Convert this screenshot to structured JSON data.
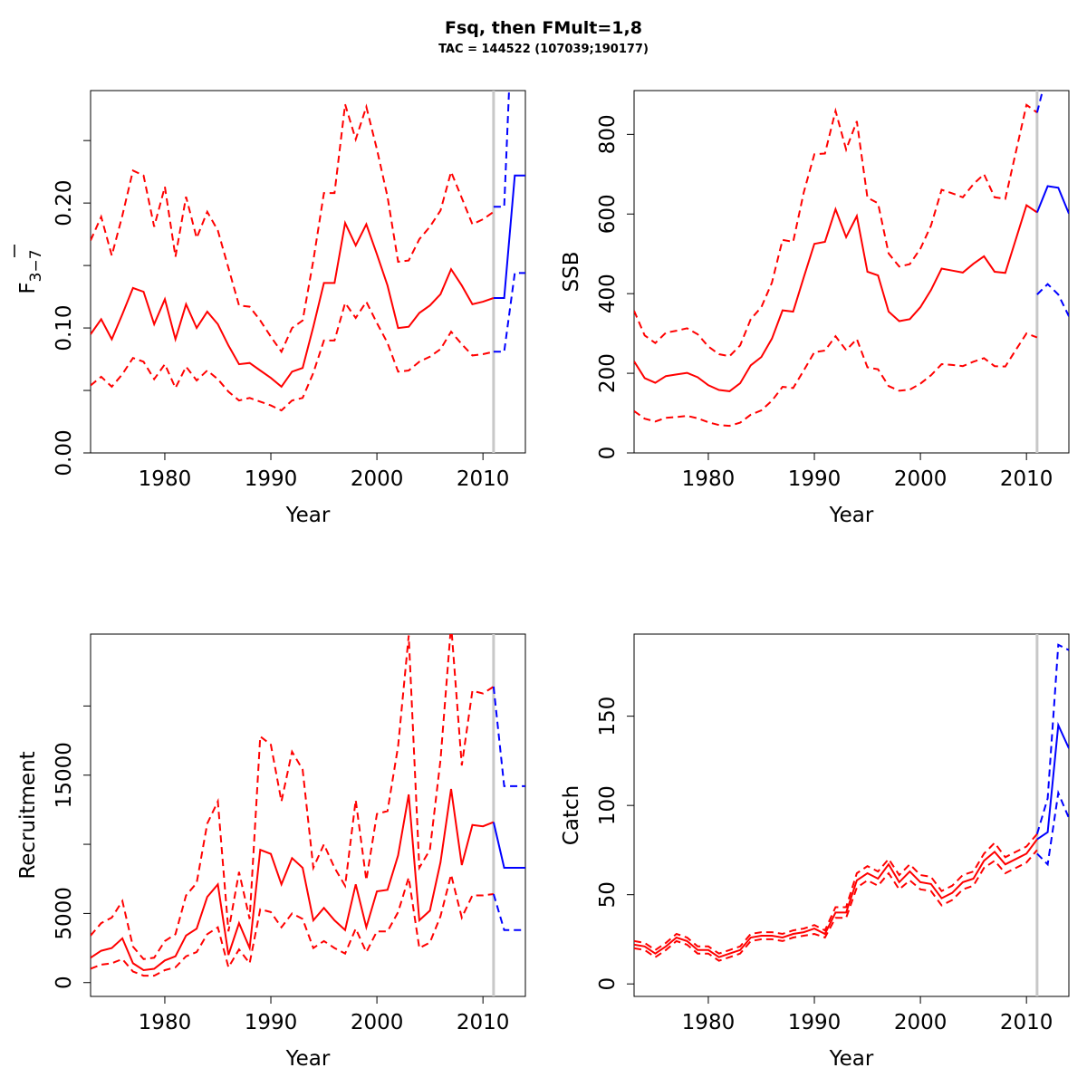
{
  "title": "Fsq, then FMult=1,8",
  "subtitle": "TAC = 144522 (107039;190177)",
  "colors": {
    "historic": "#ff0000",
    "forecast": "#0000ff",
    "marker": "#c8c8c8"
  },
  "chart_data": [
    {
      "type": "line",
      "xlabel": "Year",
      "ylabel": "F",
      "ylabel_sub": "3−7",
      "xlim": [
        1973,
        2014
      ],
      "ylim": [
        0,
        0.29
      ],
      "xticks": [
        1980,
        1990,
        2000,
        2010
      ],
      "yticks": [
        0.0,
        0.05,
        0.1,
        0.15,
        0.2,
        0.25
      ],
      "ytick_labels": [
        "0.00",
        "",
        "0.10",
        "",
        "0.20",
        ""
      ],
      "marker_year": 2011,
      "historic": {
        "x": [
          1973,
          1974,
          1975,
          1976,
          1977,
          1978,
          1979,
          1980,
          1981,
          1982,
          1983,
          1984,
          1985,
          1986,
          1987,
          1988,
          1989,
          1990,
          1991,
          1992,
          1993,
          1994,
          1995,
          1996,
          1997,
          1998,
          1999,
          2000,
          2001,
          2002,
          2003,
          2004,
          2005,
          2006,
          2007,
          2008,
          2009,
          2010,
          2011
        ],
        "mid": [
          0.095,
          0.107,
          0.091,
          0.111,
          0.132,
          0.129,
          0.103,
          0.123,
          0.091,
          0.119,
          0.1,
          0.113,
          0.103,
          0.086,
          0.071,
          0.072,
          0.066,
          0.06,
          0.053,
          0.065,
          0.068,
          0.101,
          0.136,
          0.136,
          0.184,
          0.166,
          0.183,
          0.159,
          0.134,
          0.1,
          0.101,
          0.112,
          0.118,
          0.127,
          0.147,
          0.134,
          0.119,
          0.121,
          0.124
        ],
        "low": [
          0.054,
          0.061,
          0.053,
          0.063,
          0.076,
          0.073,
          0.059,
          0.071,
          0.052,
          0.069,
          0.058,
          0.066,
          0.059,
          0.049,
          0.042,
          0.044,
          0.041,
          0.038,
          0.034,
          0.042,
          0.044,
          0.064,
          0.09,
          0.09,
          0.12,
          0.108,
          0.121,
          0.104,
          0.088,
          0.065,
          0.066,
          0.073,
          0.077,
          0.083,
          0.097,
          0.087,
          0.078,
          0.079,
          0.081
        ],
        "high": [
          0.17,
          0.189,
          0.158,
          0.19,
          0.226,
          0.222,
          0.181,
          0.213,
          0.157,
          0.205,
          0.172,
          0.193,
          0.178,
          0.148,
          0.118,
          0.117,
          0.106,
          0.093,
          0.081,
          0.1,
          0.106,
          0.154,
          0.208,
          0.208,
          0.279,
          0.251,
          0.277,
          0.243,
          0.205,
          0.153,
          0.154,
          0.171,
          0.181,
          0.194,
          0.225,
          0.204,
          0.183,
          0.187,
          0.193
        ]
      },
      "forecast": {
        "x": [
          2011,
          2012,
          2013,
          2014
        ],
        "mid": [
          0.124,
          0.124,
          0.222,
          0.222
        ],
        "low": [
          0.081,
          0.081,
          0.144,
          0.144
        ],
        "high": [
          0.197,
          0.197,
          0.4,
          0.4
        ]
      }
    },
    {
      "type": "line",
      "xlabel": "Year",
      "ylabel": "SSB",
      "xlim": [
        1973,
        2014
      ],
      "ylim": [
        0,
        910
      ],
      "xticks": [
        1980,
        1990,
        2000,
        2010
      ],
      "yticks": [
        0,
        200,
        400,
        600,
        800
      ],
      "ytick_labels": [
        "0",
        "200",
        "400",
        "600",
        "800"
      ],
      "marker_year": 2011,
      "historic": {
        "x": [
          1973,
          1974,
          1975,
          1976,
          1977,
          1978,
          1979,
          1980,
          1981,
          1982,
          1983,
          1984,
          1985,
          1986,
          1987,
          1988,
          1989,
          1990,
          1991,
          1992,
          1993,
          1994,
          1995,
          1996,
          1997,
          1998,
          1999,
          2000,
          2001,
          2002,
          2003,
          2004,
          2005,
          2006,
          2007,
          2008,
          2009,
          2010,
          2011
        ],
        "mid": [
          230,
          188,
          176,
          193,
          197,
          201,
          190,
          170,
          158,
          155,
          175,
          220,
          241,
          287,
          358,
          355,
          441,
          525,
          530,
          612,
          542,
          595,
          455,
          446,
          355,
          331,
          336,
          366,
          409,
          463,
          458,
          453,
          475,
          494,
          455,
          452,
          537,
          622,
          604
        ],
        "low": [
          105,
          86,
          79,
          88,
          90,
          93,
          87,
          77,
          70,
          68,
          76,
          96,
          107,
          131,
          166,
          163,
          207,
          253,
          257,
          293,
          258,
          286,
          215,
          210,
          168,
          156,
          159,
          174,
          195,
          223,
          221,
          218,
          229,
          238,
          218,
          217,
          259,
          300,
          290
        ],
        "high": [
          357,
          295,
          276,
          302,
          307,
          313,
          298,
          267,
          248,
          243,
          270,
          336,
          366,
          428,
          535,
          530,
          654,
          750,
          752,
          859,
          762,
          833,
          641,
          627,
          501,
          468,
          474,
          513,
          571,
          661,
          652,
          642,
          675,
          700,
          642,
          638,
          756,
          874,
          855
        ]
      },
      "forecast": {
        "x": [
          2011,
          2012,
          2013,
          2014
        ],
        "mid": [
          604,
          670,
          666,
          601
        ],
        "low": [
          398,
          424,
          398,
          343
        ],
        "high": [
          855,
          960,
          960,
          960
        ]
      }
    },
    {
      "type": "line",
      "xlabel": "Year",
      "ylabel": "Recruitment",
      "xlim": [
        1973,
        2014
      ],
      "ylim": [
        -1000,
        25200
      ],
      "xticks": [
        1980,
        1990,
        2000,
        2010
      ],
      "yticks": [
        0,
        5000,
        10000,
        15000,
        20000
      ],
      "ytick_labels": [
        "0",
        "5000",
        "",
        "15000",
        ""
      ],
      "marker_year": 2011,
      "historic": {
        "x": [
          1973,
          1974,
          1975,
          1976,
          1977,
          1978,
          1979,
          1980,
          1981,
          1982,
          1983,
          1984,
          1985,
          1986,
          1987,
          1988,
          1989,
          1990,
          1991,
          1992,
          1993,
          1994,
          1995,
          1996,
          1997,
          1998,
          1999,
          2000,
          2001,
          2002,
          2003,
          2004,
          2005,
          2006,
          2007,
          2008,
          2009,
          2010,
          2011
        ],
        "mid": [
          1800,
          2300,
          2500,
          3200,
          1400,
          900,
          1000,
          1600,
          1900,
          3400,
          3900,
          6200,
          7100,
          2000,
          4300,
          2500,
          9600,
          9300,
          7100,
          9000,
          8300,
          4500,
          5400,
          4500,
          3800,
          7100,
          4000,
          6600,
          6700,
          9200,
          13600,
          4500,
          5200,
          8700,
          14000,
          8500,
          11400,
          11300,
          11600
        ],
        "low": [
          1000,
          1300,
          1400,
          1700,
          800,
          500,
          500,
          900,
          1100,
          1900,
          2200,
          3500,
          4000,
          1100,
          2400,
          1400,
          5300,
          5100,
          4000,
          5000,
          4600,
          2500,
          3000,
          2500,
          2100,
          3900,
          2200,
          3700,
          3700,
          5100,
          7600,
          2500,
          2900,
          4800,
          7800,
          4700,
          6300,
          6300,
          6400
        ],
        "high": [
          3400,
          4300,
          4700,
          5900,
          2600,
          1700,
          1800,
          3000,
          3500,
          6300,
          7200,
          11500,
          13100,
          3700,
          8000,
          4600,
          17800,
          17200,
          13100,
          16700,
          15400,
          8300,
          10000,
          8300,
          7000,
          13200,
          7400,
          12200,
          12400,
          17100,
          25100,
          8300,
          9600,
          16100,
          25900,
          15700,
          21100,
          20900,
          21400
        ]
      },
      "forecast": {
        "x": [
          2011,
          2012,
          2013,
          2014
        ],
        "mid": [
          11600,
          8300,
          8300,
          8300
        ],
        "low": [
          6400,
          3800,
          3800,
          3800
        ],
        "high": [
          21400,
          14200,
          14200,
          14200
        ]
      }
    },
    {
      "type": "line",
      "xlabel": "Year",
      "ylabel": "Catch",
      "xlim": [
        1973,
        2014
      ],
      "ylim": [
        -7,
        196
      ],
      "xticks": [
        1980,
        1990,
        2000,
        2010
      ],
      "yticks": [
        0,
        50,
        100,
        150
      ],
      "ytick_labels": [
        "0",
        "50",
        "100",
        "150"
      ],
      "marker_year": 2011,
      "historic": {
        "x": [
          1973,
          1974,
          1975,
          1976,
          1977,
          1978,
          1979,
          1980,
          1981,
          1982,
          1983,
          1984,
          1985,
          1986,
          1987,
          1988,
          1989,
          1990,
          1991,
          1992,
          1993,
          1994,
          1995,
          1996,
          1997,
          1998,
          1999,
          2000,
          2001,
          2002,
          2003,
          2004,
          2005,
          2006,
          2007,
          2008,
          2009,
          2010,
          2011
        ],
        "mid": [
          22,
          21,
          17,
          21,
          26,
          24,
          19,
          19,
          15,
          17,
          19,
          26,
          27,
          27,
          26,
          28,
          29,
          31,
          28,
          40,
          40,
          58,
          62,
          59,
          67,
          57,
          63,
          57,
          56,
          48,
          51,
          57,
          59,
          69,
          74,
          67,
          70,
          73,
          81
        ],
        "low": [
          20,
          19,
          15,
          19,
          24,
          22,
          17,
          17,
          13,
          15,
          17,
          24,
          25,
          25,
          24,
          26,
          27,
          28,
          26,
          37,
          37,
          54,
          58,
          55,
          62,
          53,
          58,
          53,
          52,
          44,
          47,
          53,
          55,
          65,
          69,
          62,
          65,
          68,
          75
        ],
        "high": [
          24,
          23,
          19,
          23,
          28,
          26,
          21,
          21,
          17,
          19,
          21,
          28,
          29,
          29,
          28,
          30,
          31,
          33,
          30,
          43,
          43,
          62,
          66,
          63,
          70,
          61,
          67,
          61,
          60,
          52,
          55,
          61,
          63,
          73,
          79,
          71,
          74,
          77,
          84
        ]
      },
      "forecast": {
        "x": [
          2011,
          2012,
          2013,
          2014
        ],
        "mid": [
          81,
          85,
          145,
          132
        ],
        "low": [
          73,
          67,
          107,
          93
        ],
        "high": [
          84,
          104,
          190,
          187
        ]
      }
    }
  ]
}
